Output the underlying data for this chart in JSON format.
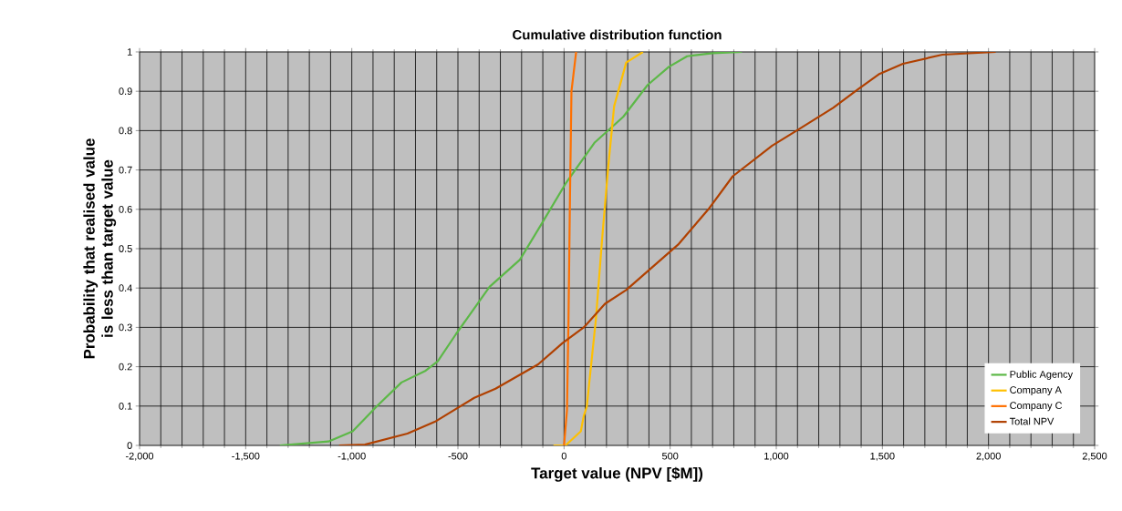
{
  "chart_data": {
    "type": "line",
    "title": "Cumulative distribution function",
    "xlabel": "Target value (NPV [$M])",
    "ylabel": "Probability that realised value is less than target value",
    "xlim": [
      -2000,
      2500
    ],
    "ylim": [
      0,
      1
    ],
    "xticks": [
      {
        "value": -2000,
        "label": "-2,000"
      },
      {
        "value": -1500,
        "label": "-1,500"
      },
      {
        "value": -1000,
        "label": "-1,000"
      },
      {
        "value": -500,
        "label": "-500"
      },
      {
        "value": 0,
        "label": "0"
      },
      {
        "value": 500,
        "label": "500"
      },
      {
        "value": 1000,
        "label": "1,000"
      },
      {
        "value": 1500,
        "label": "1,500"
      },
      {
        "value": 2000,
        "label": "2,000"
      },
      {
        "value": 2500,
        "label": "2,500"
      }
    ],
    "yticks": [
      0,
      0.1,
      0.2,
      0.3,
      0.4,
      0.5,
      0.6,
      0.7,
      0.8,
      0.9,
      1
    ],
    "grid": true,
    "legend": "bottom right",
    "marker": "none",
    "line_style": "solid",
    "series": [
      {
        "name": "Public Agency",
        "color": "#5cb847",
        "x": [
          -1339,
          -1110,
          -996,
          -881,
          -766,
          -652,
          -595,
          -509,
          -351,
          -208,
          -108,
          7,
          143,
          279,
          394,
          494,
          580,
          700,
          838
        ],
        "values": [
          0,
          0.01,
          0.036,
          0.1,
          0.16,
          0.19,
          0.214,
          0.283,
          0.403,
          0.472,
          0.561,
          0.665,
          0.769,
          0.835,
          0.916,
          0.962,
          0.989,
          0.997,
          1
        ]
      },
      {
        "name": "Company A",
        "color": "#ffc000",
        "x": [
          -50,
          7,
          79,
          93,
          107,
          150,
          179,
          208,
          236,
          293,
          372
        ],
        "values": [
          0,
          0,
          0.036,
          0.075,
          0.098,
          0.32,
          0.522,
          0.707,
          0.862,
          0.973,
          1
        ]
      },
      {
        "name": "Company C",
        "color": "#ff7000",
        "x": [
          0,
          14,
          21,
          28,
          35,
          57
        ],
        "values": [
          0,
          0.09,
          0.32,
          0.63,
          0.9,
          1
        ]
      },
      {
        "name": "Total NPV",
        "color": "#b04000",
        "x": [
          -1060,
          -938,
          -738,
          -609,
          -423,
          -323,
          -122,
          -7,
          93,
          193,
          293,
          537,
          680,
          795,
          981,
          1096,
          1268,
          1383,
          1483,
          1597,
          1783,
          2034
        ],
        "values": [
          0,
          0.002,
          0.03,
          0.06,
          0.121,
          0.144,
          0.206,
          0.26,
          0.3,
          0.36,
          0.395,
          0.51,
          0.6,
          0.684,
          0.762,
          0.8,
          0.858,
          0.904,
          0.943,
          0.97,
          0.993,
          1
        ]
      }
    ]
  }
}
